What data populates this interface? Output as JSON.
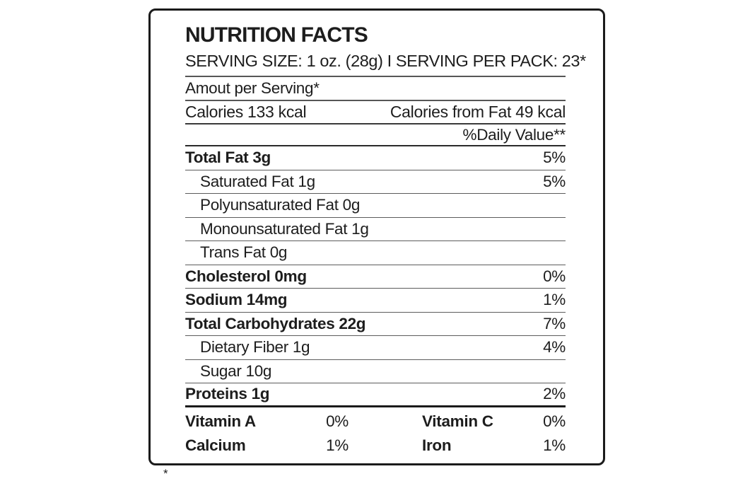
{
  "title": "NUTRITION FACTS",
  "header": {
    "serving_line": "SERVING SIZE: 1 oz. (28g) I SERVING PER PACK: 23*",
    "amount_per_serving": "Amout per Serving*",
    "calories": "Calories 133 kcal",
    "calories_from_fat": "Calories from Fat 49 kcal",
    "daily_value_heading": "%Daily Value**"
  },
  "nutrients": {
    "rows": [
      {
        "label": "Total Fat 3g",
        "value": "5%",
        "bold": true,
        "indent": false,
        "thick_rule": false
      },
      {
        "label": "Saturated Fat 1g",
        "value": "5%",
        "bold": false,
        "indent": true,
        "thick_rule": false
      },
      {
        "label": "Polyunsaturated Fat 0g",
        "value": "",
        "bold": false,
        "indent": true,
        "thick_rule": false
      },
      {
        "label": "Monounsaturated Fat 1g",
        "value": "",
        "bold": false,
        "indent": true,
        "thick_rule": false
      },
      {
        "label": "Trans Fat 0g",
        "value": "",
        "bold": false,
        "indent": true,
        "thick_rule": false
      },
      {
        "label": "Cholesterol 0mg",
        "value": "0%",
        "bold": true,
        "indent": false,
        "thick_rule": false
      },
      {
        "label": "Sodium 14mg",
        "value": "1%",
        "bold": true,
        "indent": false,
        "thick_rule": false
      },
      {
        "label": "Total Carbohydrates 22g",
        "value": "7%",
        "bold": true,
        "indent": false,
        "thick_rule": false
      },
      {
        "label": "Dietary Fiber 1g",
        "value": "4%",
        "bold": false,
        "indent": true,
        "thick_rule": false
      },
      {
        "label": "Sugar 10g",
        "value": "",
        "bold": false,
        "indent": true,
        "thick_rule": false
      },
      {
        "label": "Proteins 1g",
        "value": "2%",
        "bold": true,
        "indent": false,
        "thick_rule": true
      }
    ]
  },
  "micronutrients": {
    "rows": [
      {
        "label_left": "Vitamin A",
        "value_left": "0%",
        "label_right": "Vitamin C",
        "value_right": "0%"
      },
      {
        "label_left": "Calcium",
        "value_left": "1%",
        "label_right": "Iron",
        "value_right": "1%"
      }
    ]
  },
  "footnote_marker": "*",
  "colors": {
    "text": "#1d1d1d",
    "border": "#1b1b1b",
    "rule_thin": "#5c5c5c",
    "rule_thick": "#1b1b1b",
    "background": "#ffffff"
  }
}
